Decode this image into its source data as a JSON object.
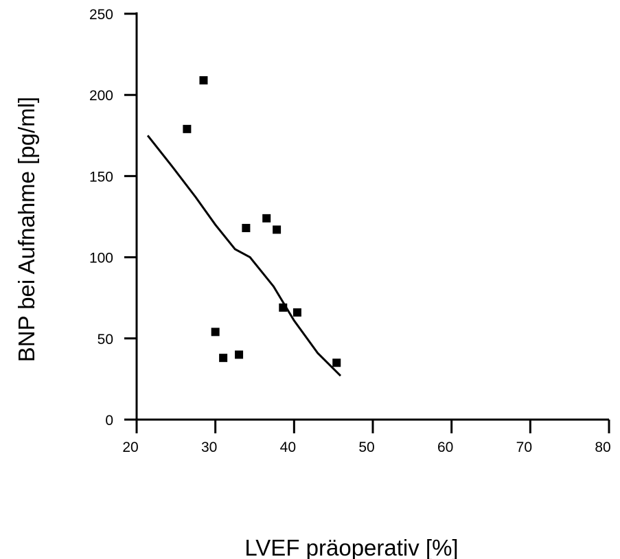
{
  "chart_data": {
    "type": "scatter",
    "title": "",
    "xlabel": "LVEF präoperativ [%]",
    "ylabel": "BNP bei Aufnahme [pg/ml]",
    "xlim": [
      20,
      80
    ],
    "ylim": [
      0,
      250
    ],
    "x_ticks": [
      "20",
      "30",
      "40",
      "50",
      "60",
      "70",
      "80"
    ],
    "y_ticks": [
      "0",
      "50",
      "100",
      "150",
      "200",
      "250"
    ],
    "grid": false,
    "legend": "none",
    "series": [
      {
        "type": "scatter",
        "marker": "square",
        "points": [
          {
            "x": 26.4,
            "y": 179
          },
          {
            "x": 28.5,
            "y": 209
          },
          {
            "x": 30.0,
            "y": 54
          },
          {
            "x": 31.0,
            "y": 38
          },
          {
            "x": 33.0,
            "y": 40
          },
          {
            "x": 33.9,
            "y": 118
          },
          {
            "x": 36.5,
            "y": 124
          },
          {
            "x": 37.8,
            "y": 117
          },
          {
            "x": 38.6,
            "y": 69
          },
          {
            "x": 40.4,
            "y": 66
          },
          {
            "x": 45.4,
            "y": 35
          }
        ]
      },
      {
        "type": "line",
        "points": [
          {
            "x": 21.4,
            "y": 175
          },
          {
            "x": 24.5,
            "y": 156
          },
          {
            "x": 27.5,
            "y": 137
          },
          {
            "x": 30.0,
            "y": 120
          },
          {
            "x": 32.5,
            "y": 105
          },
          {
            "x": 34.4,
            "y": 100
          },
          {
            "x": 37.4,
            "y": 82
          },
          {
            "x": 40.0,
            "y": 61
          },
          {
            "x": 43.0,
            "y": 41
          },
          {
            "x": 45.9,
            "y": 27
          }
        ]
      }
    ]
  }
}
